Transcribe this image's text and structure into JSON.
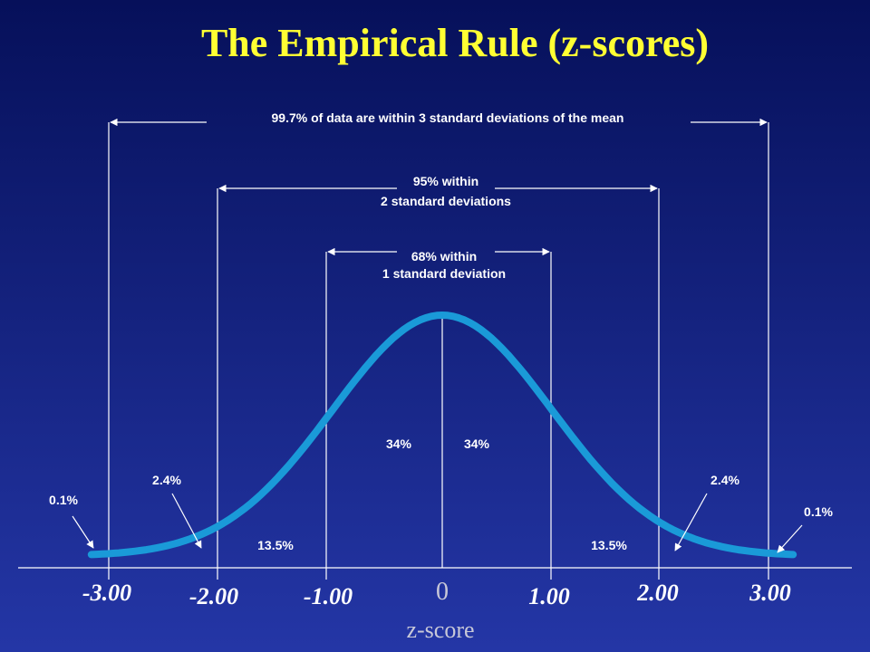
{
  "title": "The Empirical Rule (z-scores)",
  "spans": [
    {
      "lines": [
        "99.7% of data are within 3 standard deviations of the mean"
      ]
    },
    {
      "lines": [
        "95% within",
        "2 standard deviations"
      ]
    },
    {
      "lines": [
        "68% within",
        "1 standard deviation"
      ]
    }
  ],
  "regions": [
    "0.1%",
    "2.4%",
    "13.5%",
    "34%",
    "34%",
    "13.5%",
    "2.4%",
    "0.1%"
  ],
  "ticks": [
    "-3.00",
    "-2.00",
    "-1.00",
    "0",
    "1.00",
    "2.00",
    "3.00"
  ],
  "axis_label": "z-score"
}
